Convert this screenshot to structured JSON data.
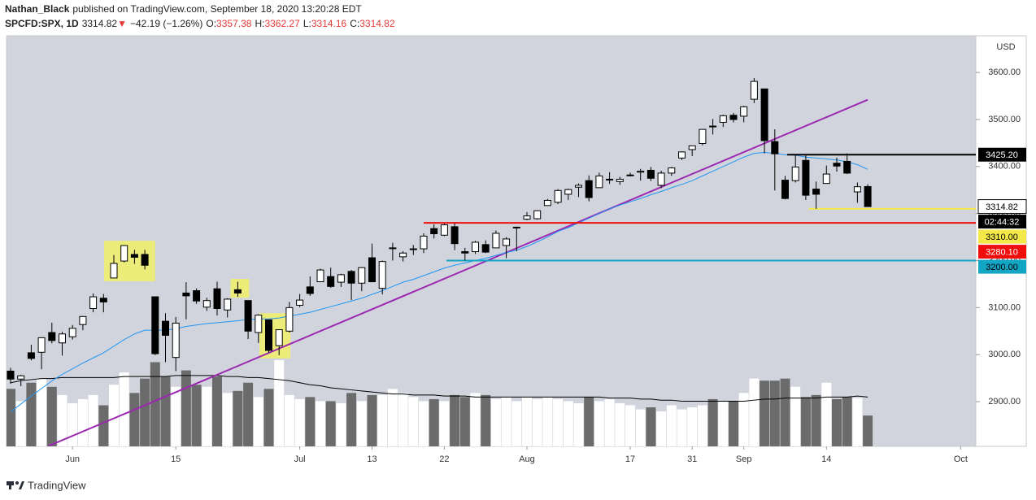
{
  "header": {
    "author": "Nathan_Black",
    "published": "published on TradingView.com, September 18, 2020 13:20:28 EDT",
    "symbol": "SPCFD:SPX, 1D",
    "price": "3314.82",
    "arrow": "▼",
    "change": "−42.19 (−1.26%)",
    "o_label": "O:",
    "o": "3357.38",
    "h_label": "H:",
    "h": "3362.27",
    "l_label": "L:",
    "l": "3314.16",
    "c_label": "C:",
    "c": "3314.82"
  },
  "footer": "TradingView",
  "chart_data": {
    "type": "candlestick",
    "currency": "USD",
    "categories": [
      null,
      null,
      null,
      null,
      null,
      null,
      "Jun",
      null,
      null,
      null,
      null,
      null,
      null,
      null,
      null,
      null,
      "15",
      null,
      null,
      null,
      null,
      null,
      null,
      null,
      null,
      null,
      null,
      null,
      "Jul",
      null,
      null,
      null,
      null,
      null,
      null,
      "13",
      null,
      null,
      null,
      null,
      null,
      null,
      "22",
      null,
      null,
      null,
      null,
      null,
      null,
      null,
      "Aug",
      null,
      null,
      null,
      null,
      null,
      null,
      null,
      null,
      null,
      "17",
      null,
      null,
      null,
      null,
      null,
      "31",
      null,
      null,
      null,
      null,
      "Sep",
      null,
      null,
      null,
      null,
      null,
      null,
      null,
      "14",
      null,
      null,
      null,
      null,
      null,
      null,
      null,
      null,
      null,
      null,
      null,
      null,
      "Oct"
    ],
    "open": [
      2965,
      2948,
      3004,
      3005,
      3047,
      3025,
      3038,
      3064,
      3098,
      3120,
      3163,
      3199,
      3213,
      3213,
      3123,
      3071,
      2994,
      3131,
      3136,
      3101,
      3140,
      3095,
      3138,
      3115,
      3047,
      3074,
      3019,
      3050,
      3105,
      3144,
      3155,
      3166,
      3154,
      3177,
      3152,
      3206,
      3141,
      3226,
      3208,
      3225,
      3225,
      3268,
      3254,
      3272,
      3219,
      3219,
      3234,
      3227,
      3232,
      3270,
      3288,
      3289,
      3317,
      3324,
      3341,
      3356,
      3370,
      3355,
      3372,
      3368,
      3381,
      3388,
      3392,
      3360,
      3386,
      3418,
      3436,
      3449,
      3486,
      3494,
      3509,
      3507,
      3543,
      3565,
      3453,
      3371,
      3370,
      3413,
      3352,
      3364,
      3407,
      3411,
      3346,
      3357.38,
      null,
      null,
      null,
      null,
      null,
      null,
      null,
      null,
      null
    ],
    "high": [
      2972,
      2957,
      3021,
      3037,
      3068,
      3049,
      3063,
      3082,
      3130,
      3129,
      3212,
      3233,
      3223,
      3223,
      3123,
      3088,
      3080,
      3154,
      3141,
      3121,
      3155,
      3120,
      3155,
      3115,
      3086,
      3074,
      3054,
      3112,
      3129,
      3166,
      3183,
      3185,
      3172,
      3180,
      3186,
      3236,
      3200,
      3238,
      3220,
      3233,
      3258,
      3277,
      3279,
      3279,
      3227,
      3242,
      3243,
      3264,
      3250,
      3272,
      3303,
      3307,
      3331,
      3352,
      3353,
      3364,
      3381,
      3387,
      3388,
      3378,
      3387,
      3395,
      3399,
      3391,
      3399,
      3432,
      3444,
      3479,
      3501,
      3510,
      3514,
      3529,
      3588,
      3565,
      3479,
      3380,
      3425,
      3425,
      3368,
      3402,
      3419,
      3428,
      3366,
      3362.27,
      null,
      null,
      null,
      null,
      null,
      null,
      null,
      null,
      null
    ],
    "low": [
      2938,
      2933,
      2988,
      2969,
      3024,
      2998,
      3032,
      3052,
      3090,
      3090,
      3163,
      3196,
      3193,
      3181,
      2999,
      2984,
      2965,
      3075,
      3108,
      3093,
      3083,
      3079,
      3123,
      3033,
      3025,
      3004,
      2999,
      3047,
      3101,
      3125,
      3155,
      3142,
      3144,
      3116,
      3135,
      3154,
      3128,
      3200,
      3198,
      3212,
      3216,
      3247,
      3252,
      3222,
      3200,
      3214,
      3216,
      3227,
      3205,
      3220,
      3286,
      3287,
      3317,
      3320,
      3329,
      3335,
      3326,
      3355,
      3363,
      3361,
      3379,
      3370,
      3369,
      3354,
      3380,
      3414,
      3422,
      3445,
      3468,
      3484,
      3494,
      3494,
      3535,
      3428,
      3349,
      3330,
      3366,
      3329,
      3310,
      3364,
      3389,
      3384,
      3323,
      3314.16,
      null,
      null,
      null,
      null,
      null,
      null,
      null,
      null,
      null
    ],
    "close": [
      2948,
      2955,
      2992,
      3036,
      3030,
      3044,
      3056,
      3081,
      3123,
      3112,
      3194,
      3232,
      3207,
      3190,
      3002,
      3041,
      3067,
      3125,
      3114,
      3115,
      3098,
      3118,
      3131,
      3050,
      3084,
      3009,
      3053,
      3100,
      3116,
      3130,
      3180,
      3145,
      3170,
      3152,
      3185,
      3155,
      3198,
      3227,
      3216,
      3225,
      3252,
      3257,
      3276,
      3236,
      3216,
      3239,
      3218,
      3258,
      3246,
      3271,
      3295,
      3306,
      3328,
      3349,
      3351,
      3360,
      3334,
      3380,
      3373,
      3373,
      3382,
      3390,
      3375,
      3386,
      3397,
      3431,
      3444,
      3479,
      3485,
      3508,
      3500,
      3527,
      3581,
      3455,
      3427,
      3332,
      3399,
      3339,
      3341,
      3384,
      3401,
      3386,
      3357,
      3314.82,
      null,
      null,
      null,
      null,
      null,
      null,
      null,
      null,
      null
    ],
    "volume": [
      56,
      44,
      62,
      66,
      58,
      50,
      42,
      46,
      50,
      40,
      60,
      72,
      52,
      66,
      82,
      68,
      58,
      74,
      60,
      58,
      68,
      52,
      54,
      62,
      48,
      56,
      84,
      50,
      46,
      48,
      44,
      44,
      42,
      52,
      44,
      50,
      50,
      56,
      52,
      48,
      44,
      46,
      44,
      50,
      48,
      52,
      50,
      46,
      48,
      44,
      48,
      46,
      48,
      46,
      44,
      42,
      48,
      44,
      46,
      42,
      40,
      36,
      38,
      34,
      40,
      36,
      38,
      40,
      46,
      44,
      44,
      52,
      66,
      64,
      64,
      66,
      58,
      48,
      50,
      62,
      46,
      48,
      47,
      30,
      null,
      null,
      null,
      null,
      null,
      null,
      null,
      null,
      null
    ],
    "ma": [
      2878,
      2895,
      2912,
      2928,
      2944,
      2958,
      2970,
      2982,
      2993,
      3004,
      3018,
      3032,
      3044,
      3052,
      3052,
      3052,
      3055,
      3060,
      3063,
      3066,
      3068,
      3070,
      3072,
      3075,
      3076,
      3076,
      3078,
      3082,
      3086,
      3090,
      3096,
      3102,
      3108,
      3114,
      3120,
      3128,
      3136,
      3145,
      3154,
      3160,
      3168,
      3176,
      3184,
      3190,
      3195,
      3200,
      3205,
      3211,
      3217,
      3222,
      3230,
      3240,
      3250,
      3262,
      3270,
      3280,
      3290,
      3300,
      3310,
      3318,
      3325,
      3332,
      3340,
      3347,
      3355,
      3362,
      3370,
      3380,
      3390,
      3400,
      3410,
      3420,
      3428,
      3430,
      3428,
      3425,
      3424,
      3420,
      3418,
      3416,
      3414,
      3410,
      3404,
      3394,
      null,
      null,
      null,
      null,
      null,
      null,
      null,
      null,
      null
    ],
    "volume_ma": [
      62,
      64,
      65,
      66,
      66,
      67,
      67,
      67,
      67,
      67,
      67,
      68,
      68,
      68,
      68,
      68,
      69,
      69,
      69,
      69,
      69,
      68,
      68,
      67,
      67,
      66,
      65,
      64,
      62,
      60,
      59,
      57,
      56,
      55,
      54,
      53,
      52,
      51,
      51,
      50,
      50,
      50,
      49,
      49,
      49,
      48,
      48,
      48,
      48,
      48,
      48,
      48,
      48,
      48,
      48,
      48,
      48,
      48,
      47,
      47,
      47,
      46,
      46,
      45,
      45,
      44,
      44,
      44,
      44,
      44,
      44,
      44,
      45,
      46,
      46,
      47,
      47,
      47,
      47,
      48,
      48,
      48,
      49,
      48,
      null,
      null,
      null,
      null,
      null,
      null,
      null,
      null,
      null
    ],
    "up_color": "#ffffff",
    "down_color": "#000000",
    "up_volume_color": "#ffffff",
    "down_volume_color": "#6b6b6b",
    "ma_color": "#2196f3",
    "volume_ma_color": "#000000",
    "ylim": [
      2805,
      3678
    ],
    "yticks": [
      {
        "value": 2900,
        "label": "2900.00"
      },
      {
        "value": 3000,
        "label": "3000.00"
      },
      {
        "value": 3100,
        "label": "3100.00"
      },
      {
        "value": 3200,
        "label": "3200.00"
      },
      {
        "value": 3300,
        "label": "3300.00"
      },
      {
        "value": 3400,
        "label": "3400.00"
      },
      {
        "value": 3500,
        "label": "3500.00"
      },
      {
        "value": 3600,
        "label": "3600.00"
      }
    ],
    "y2lim": [
      0,
      400
    ],
    "grid": false,
    "lines": [
      {
        "color": "#9c27b0",
        "x": [
          3.7,
          83
        ],
        "y": [
          2806,
          3542
        ]
      }
    ],
    "levels": [
      {
        "value": 3425.2,
        "label": "3425.20",
        "color": "#000000",
        "from": 75.2
      },
      {
        "value": 3310,
        "label": "3310.00",
        "color": "#f5e94a",
        "from": 77.3
      },
      {
        "value": 3280.1,
        "label": "3280.10",
        "color": "#f20d0d",
        "from": 40
      },
      {
        "value": 3200,
        "label": "3200.00",
        "color": "#13a5c4",
        "from": 42.2
      }
    ],
    "last_price": {
      "value": 3314.82,
      "label": "3314.82"
    },
    "countdown": "02:44:32",
    "highlights": [
      {
        "x": [
          9.06,
          14.0
        ],
        "y": [
          3156,
          3242
        ]
      },
      {
        "x": [
          21.3,
          23.1
        ],
        "y": [
          3121,
          3161
        ]
      },
      {
        "x": [
          24.1,
          27.1
        ],
        "y": [
          2992,
          3088
        ]
      }
    ],
    "highlight_color": "#ecec7a"
  }
}
